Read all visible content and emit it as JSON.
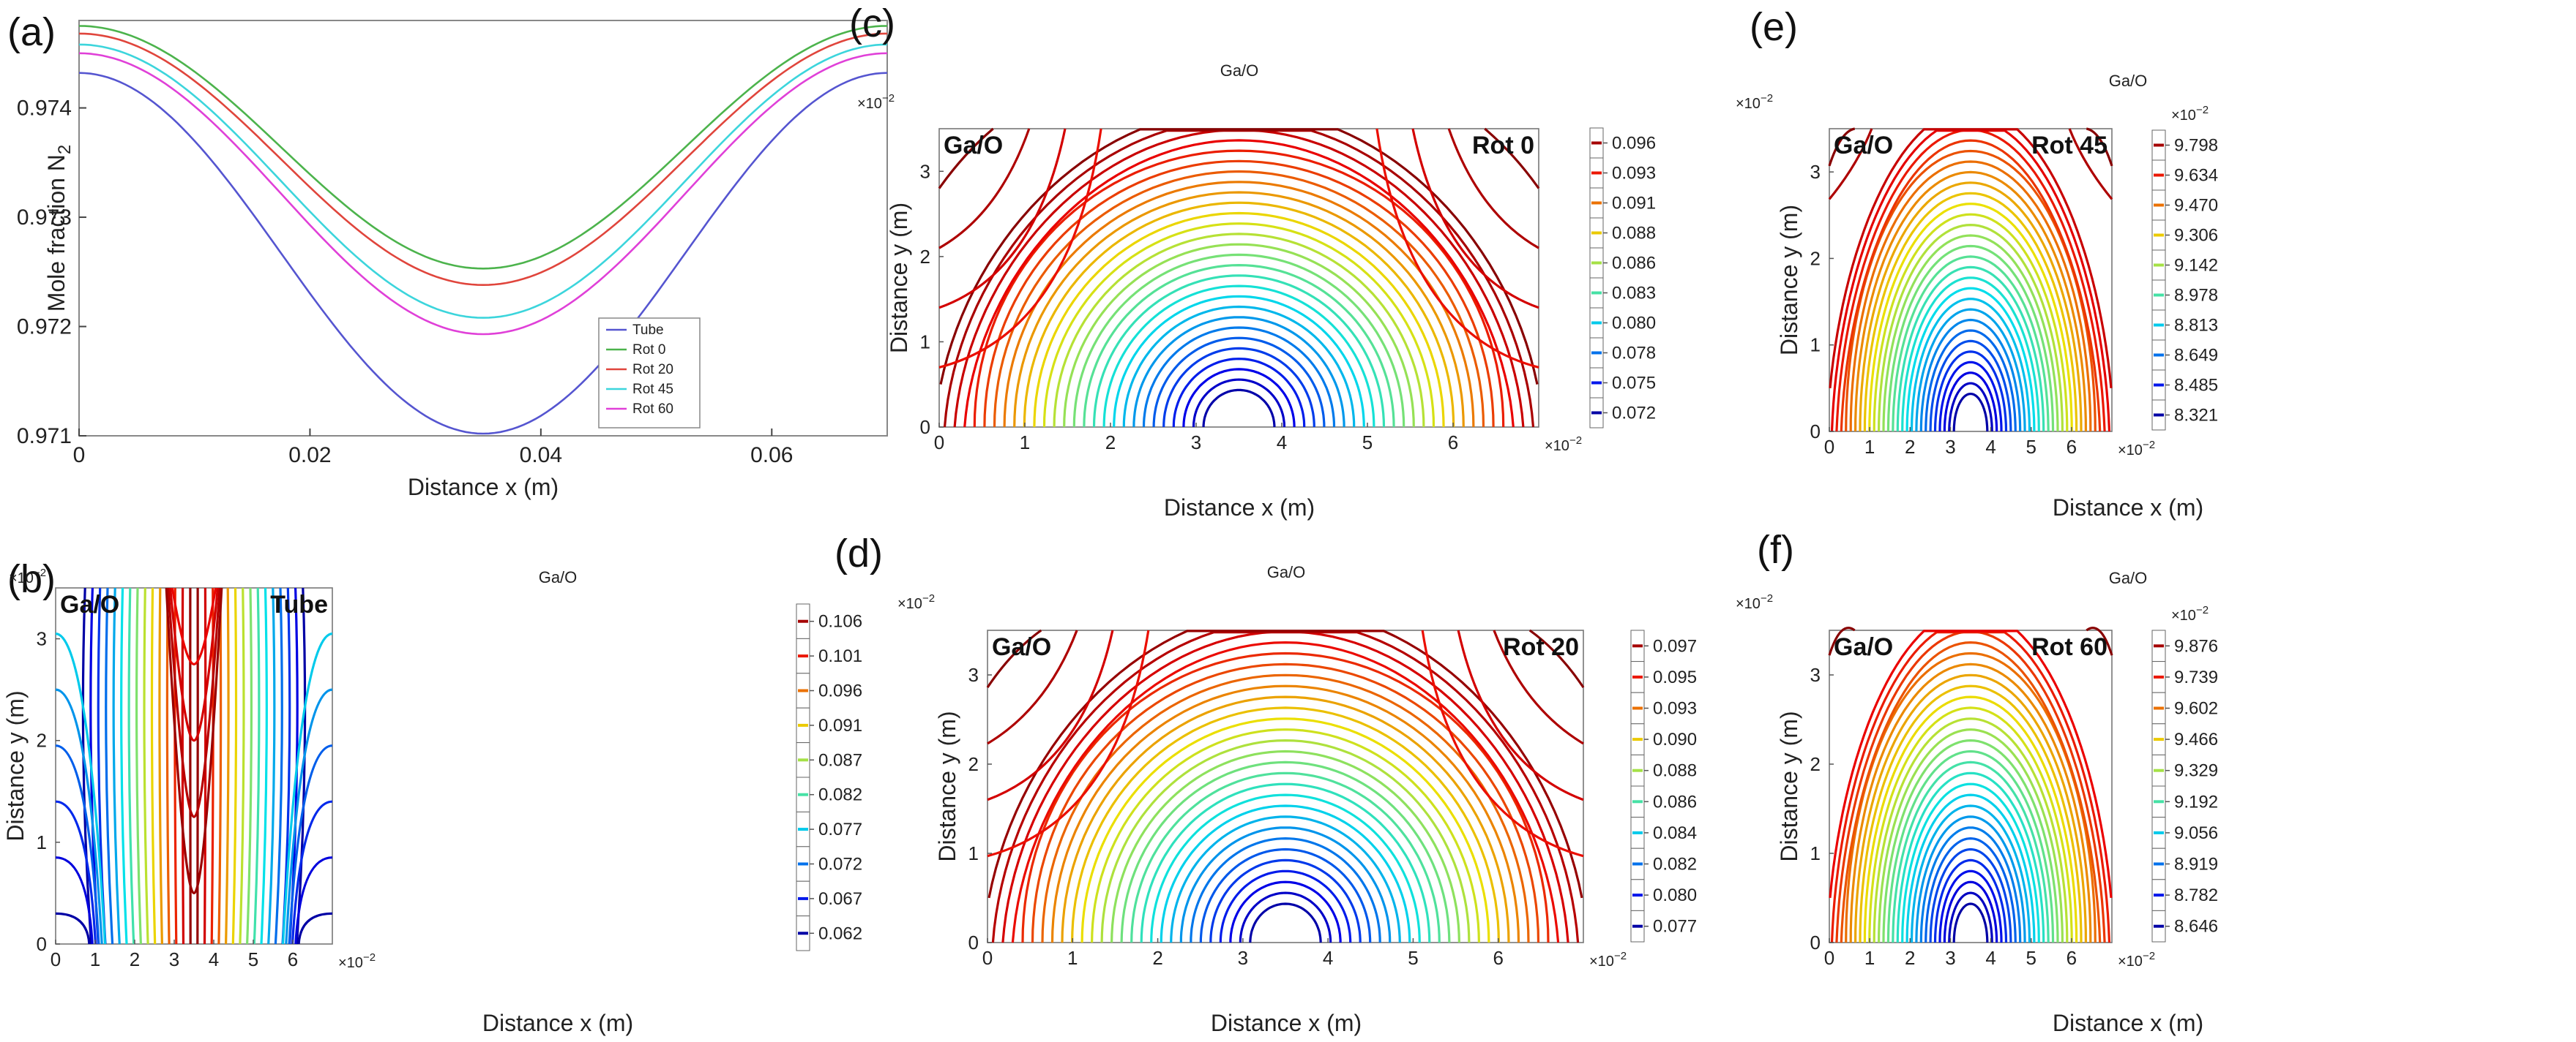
{
  "figure": {
    "chart_data": [
      {
        "id": "a",
        "panel_label": "(a)",
        "type": "line",
        "title": "",
        "xlabel": "Distance x (m)",
        "ylabel": "Mole fraction N",
        "ylabel_subscript": "2",
        "xlim": [
          0,
          0.07
        ],
        "ylim": [
          0.971,
          0.9748
        ],
        "xticks": [
          "0",
          "0.02",
          "0.04",
          "0.06"
        ],
        "yticks": [
          "0.971",
          "0.972",
          "0.973",
          "0.974"
        ],
        "legend_position": "bottom-right",
        "series": [
          {
            "name": "Tube",
            "color": "#5555d0",
            "max": 0.97432,
            "min": 0.97102
          },
          {
            "name": "Rot 0",
            "color": "#4cb34c",
            "max": 0.97475,
            "min": 0.97253
          },
          {
            "name": "Rot 20",
            "color": "#e0453c",
            "max": 0.97468,
            "min": 0.97238
          },
          {
            "name": "Rot 45",
            "color": "#3cd5dc",
            "max": 0.97458,
            "min": 0.97208
          },
          {
            "name": "Rot 60",
            "color": "#e040d8",
            "max": 0.9745,
            "min": 0.97193
          }
        ]
      },
      {
        "id": "b",
        "panel_label": "(b)",
        "type": "contour",
        "mode": "tube",
        "title": "Ga/O",
        "corner_left": "Ga/O",
        "corner_right": "Tube",
        "xlabel": "Distance x (m)",
        "ylabel": "Distance y (m)",
        "x_exponent": "×10",
        "x_exponent_power": "−2",
        "y_exponent": "×10",
        "y_exponent_power": "−2",
        "xticks": [
          "0",
          "1",
          "2",
          "3",
          "4",
          "5",
          "6"
        ],
        "yticks": [
          "0",
          "1",
          "2",
          "3"
        ],
        "xlim": [
          0,
          7
        ],
        "ylim": [
          0,
          3.5
        ],
        "colorbar_labels": [
          "0.106",
          "0.101",
          "0.096",
          "0.091",
          "0.087",
          "0.082",
          "0.077",
          "0.072",
          "0.067",
          "0.062"
        ],
        "colorbar_exponent": ""
      },
      {
        "id": "c",
        "panel_label": "(c)",
        "type": "contour",
        "mode": "rot",
        "edge_strength": 1.0,
        "title": "Ga/O",
        "corner_left": "Ga/O",
        "corner_right": "Rot 0",
        "xlabel": "Distance x (m)",
        "ylabel": "Distance y (m)",
        "x_exponent": "×10",
        "x_exponent_power": "−2",
        "y_exponent": "×10",
        "y_exponent_power": "−2",
        "xticks": [
          "0",
          "1",
          "2",
          "3",
          "4",
          "5",
          "6"
        ],
        "yticks": [
          "0",
          "1",
          "2",
          "3"
        ],
        "xlim": [
          0,
          7
        ],
        "ylim": [
          0,
          3.5
        ],
        "colorbar_labels": [
          "0.096",
          "0.093",
          "0.091",
          "0.088",
          "0.086",
          "0.083",
          "0.080",
          "0.078",
          "0.075",
          "0.072"
        ],
        "colorbar_exponent": ""
      },
      {
        "id": "d",
        "panel_label": "(d)",
        "type": "contour",
        "mode": "rot",
        "edge_strength": 0.9,
        "title": "Ga/O",
        "corner_left": "Ga/O",
        "corner_right": "Rot 20",
        "xlabel": "Distance x (m)",
        "ylabel": "Distance y (m)",
        "x_exponent": "×10",
        "x_exponent_power": "−2",
        "y_exponent": "×10",
        "y_exponent_power": "−2",
        "xticks": [
          "0",
          "1",
          "2",
          "3",
          "4",
          "5",
          "6"
        ],
        "yticks": [
          "0",
          "1",
          "2",
          "3"
        ],
        "xlim": [
          0,
          7
        ],
        "ylim": [
          0,
          3.5
        ],
        "colorbar_labels": [
          "0.097",
          "0.095",
          "0.093",
          "0.090",
          "0.088",
          "0.086",
          "0.084",
          "0.082",
          "0.080",
          "0.077"
        ],
        "colorbar_exponent": ""
      },
      {
        "id": "e",
        "panel_label": "(e)",
        "type": "contour",
        "mode": "rot",
        "edge_strength": 0.55,
        "title": "Ga/O",
        "corner_left": "Ga/O",
        "corner_right": "Rot 45",
        "xlabel": "Distance x (m)",
        "ylabel": "Distance y (m)",
        "x_exponent": "×10",
        "x_exponent_power": "−2",
        "y_exponent": "×10",
        "y_exponent_power": "−2",
        "xticks": [
          "0",
          "1",
          "2",
          "3",
          "4",
          "5",
          "6"
        ],
        "yticks": [
          "0",
          "1",
          "2",
          "3"
        ],
        "xlim": [
          0,
          7
        ],
        "ylim": [
          0,
          3.5
        ],
        "colorbar_labels": [
          "9.798",
          "9.634",
          "9.470",
          "9.306",
          "9.142",
          "8.978",
          "8.813",
          "8.649",
          "8.485",
          "8.321"
        ],
        "colorbar_exponent": "×10",
        "colorbar_exponent_power": "−2"
      },
      {
        "id": "f",
        "panel_label": "(f)",
        "type": "contour",
        "mode": "rot",
        "edge_strength": 0.3,
        "title": "Ga/O",
        "corner_left": "Ga/O",
        "corner_right": "Rot 60",
        "xlabel": "Distance x (m)",
        "ylabel": "Distance y (m)",
        "x_exponent": "×10",
        "x_exponent_power": "−2",
        "y_exponent": "×10",
        "y_exponent_power": "−2",
        "xticks": [
          "0",
          "1",
          "2",
          "3",
          "4",
          "5",
          "6"
        ],
        "yticks": [
          "0",
          "1",
          "2",
          "3"
        ],
        "xlim": [
          0,
          7
        ],
        "ylim": [
          0,
          3.5
        ],
        "colorbar_labels": [
          "9.876",
          "9.739",
          "9.602",
          "9.466",
          "9.329",
          "9.192",
          "9.056",
          "8.919",
          "8.782",
          "8.646"
        ],
        "colorbar_exponent": "×10",
        "colorbar_exponent_power": "−2"
      }
    ]
  }
}
